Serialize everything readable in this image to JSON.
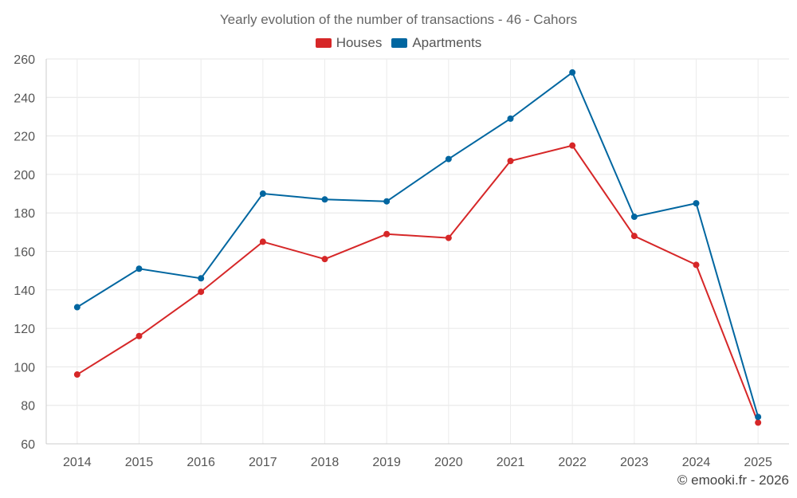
{
  "chart_data": {
    "type": "line",
    "title": "Yearly evolution of the number of transactions - 46 - Cahors",
    "categories": [
      "2014",
      "2015",
      "2016",
      "2017",
      "2018",
      "2019",
      "2020",
      "2021",
      "2022",
      "2023",
      "2024",
      "2025"
    ],
    "series": [
      {
        "name": "Houses",
        "color": "#d62728",
        "values": [
          96,
          116,
          139,
          165,
          156,
          169,
          167,
          207,
          215,
          168,
          153,
          71
        ]
      },
      {
        "name": "Apartments",
        "color": "#0066a0",
        "values": [
          131,
          151,
          146,
          190,
          187,
          186,
          208,
          229,
          253,
          178,
          185,
          74
        ]
      }
    ],
    "ylim": [
      60,
      260
    ],
    "yticks": [
      60,
      80,
      100,
      120,
      140,
      160,
      180,
      200,
      220,
      240,
      260
    ],
    "xlabel": "",
    "ylabel": "",
    "grid": true,
    "legend": "top-center"
  },
  "credit": "© emooki.fr - 2026"
}
